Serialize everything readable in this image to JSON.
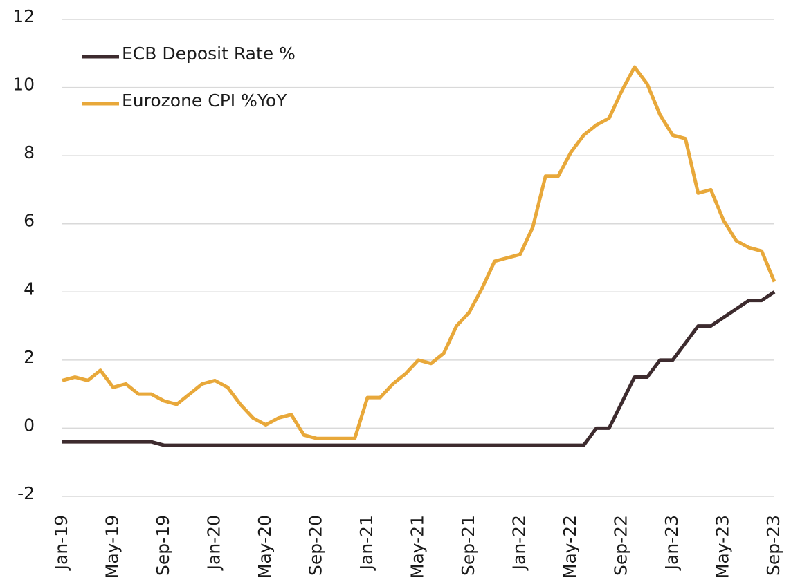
{
  "chart_data": {
    "type": "line",
    "categories": [
      "Jan-19",
      null,
      null,
      null,
      "May-19",
      null,
      null,
      null,
      "Sep-19",
      null,
      null,
      null,
      "Jan-20",
      null,
      null,
      null,
      "May-20",
      null,
      null,
      null,
      "Sep-20",
      null,
      null,
      null,
      "Jan-21",
      null,
      null,
      null,
      "May-21",
      null,
      null,
      null,
      "Sep-21",
      null,
      null,
      null,
      "Jan-22",
      null,
      null,
      null,
      "May-22",
      null,
      null,
      null,
      "Sep-22",
      null,
      null,
      null,
      "Jan-23",
      null,
      null,
      null,
      "May-23",
      null,
      null,
      null,
      "Sep-23"
    ],
    "series": [
      {
        "name": "ECB Deposit Rate %",
        "color": "#3d2b2e",
        "values": [
          -0.4,
          -0.4,
          -0.4,
          -0.4,
          -0.4,
          -0.4,
          -0.4,
          -0.4,
          -0.5,
          -0.5,
          -0.5,
          -0.5,
          -0.5,
          -0.5,
          -0.5,
          -0.5,
          -0.5,
          -0.5,
          -0.5,
          -0.5,
          -0.5,
          -0.5,
          -0.5,
          -0.5,
          -0.5,
          -0.5,
          -0.5,
          -0.5,
          -0.5,
          -0.5,
          -0.5,
          -0.5,
          -0.5,
          -0.5,
          -0.5,
          -0.5,
          -0.5,
          -0.5,
          -0.5,
          -0.5,
          -0.5,
          -0.5,
          0,
          0,
          0.75,
          1.5,
          1.5,
          2.0,
          2.0,
          2.5,
          3.0,
          3.0,
          3.25,
          3.5,
          3.75,
          3.75,
          4.0
        ]
      },
      {
        "name": "Eurozone CPI %YoY",
        "color": "#e8a83a",
        "values": [
          1.4,
          1.5,
          1.4,
          1.7,
          1.2,
          1.3,
          1.0,
          1.0,
          0.8,
          0.7,
          1.0,
          1.3,
          1.4,
          1.2,
          0.7,
          0.3,
          0.1,
          0.3,
          0.4,
          -0.2,
          -0.3,
          -0.3,
          -0.3,
          -0.3,
          0.9,
          0.9,
          1.3,
          1.6,
          2.0,
          1.9,
          2.2,
          3.0,
          3.4,
          4.1,
          4.9,
          5.0,
          5.1,
          5.9,
          7.4,
          7.4,
          8.1,
          8.6,
          8.9,
          9.1,
          9.9,
          10.6,
          10.1,
          9.2,
          8.6,
          8.5,
          6.9,
          7.0,
          6.1,
          5.5,
          5.3,
          5.2,
          4.3
        ]
      }
    ],
    "ylim": [
      -2,
      12
    ],
    "yticks": [
      -2,
      0,
      2,
      4,
      6,
      8,
      10,
      12
    ],
    "grid": true,
    "legend": "upper left"
  }
}
